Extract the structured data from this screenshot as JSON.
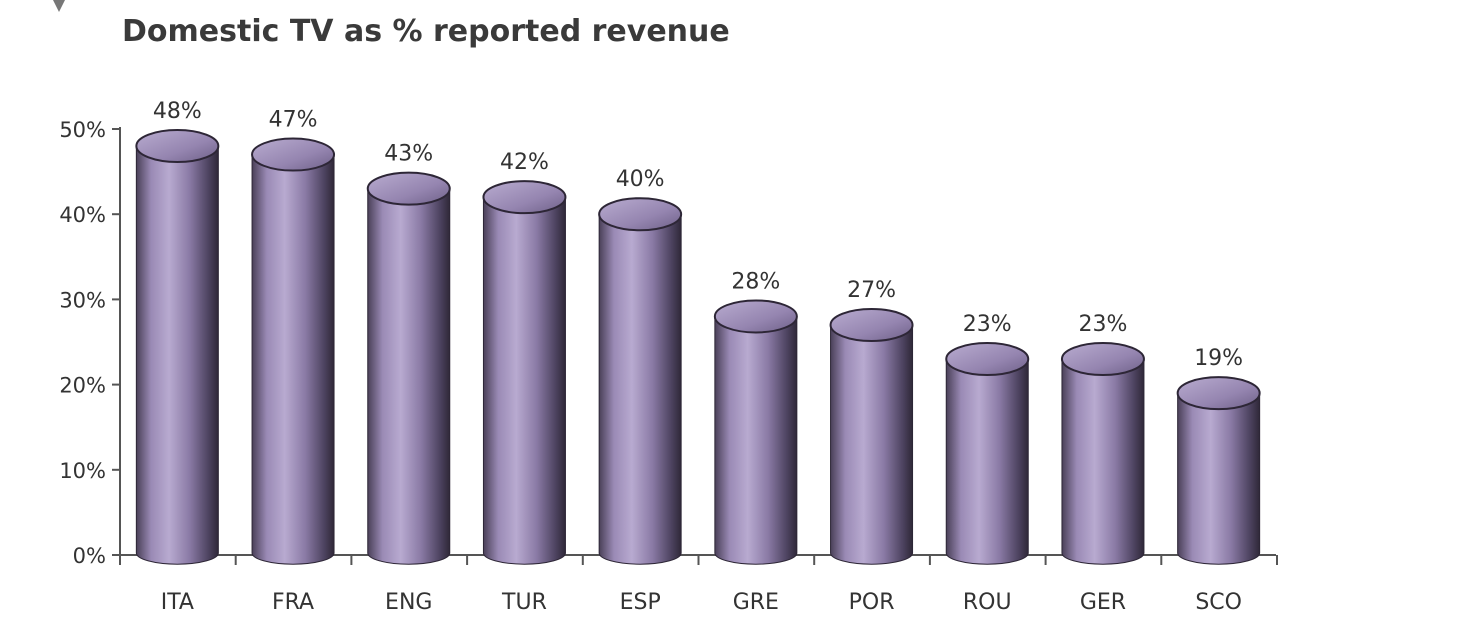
{
  "chart_data": {
    "type": "bar",
    "title": "Domestic TV as % reported revenue",
    "xlabel": "",
    "ylabel": "",
    "categories": [
      "ITA",
      "FRA",
      "ENG",
      "TUR",
      "ESP",
      "GRE",
      "POR",
      "ROU",
      "GER",
      "SCO"
    ],
    "values": [
      48,
      47,
      43,
      42,
      40,
      28,
      27,
      23,
      23,
      19
    ],
    "value_labels": [
      "48%",
      "47%",
      "43%",
      "42%",
      "40%",
      "28%",
      "27%",
      "23%",
      "23%",
      "19%"
    ],
    "ylim": [
      0,
      50
    ],
    "y_ticks": [
      0,
      10,
      20,
      30,
      40,
      50
    ],
    "y_tick_labels": [
      "0%",
      "10%",
      "20%",
      "30%",
      "40%",
      "50%"
    ],
    "grid": false,
    "legend": "none",
    "bar_style": "cylinder",
    "colors": {
      "bar_light": "#a999c2",
      "bar_mid": "#7e6f98",
      "bar_dark": "#3b3349",
      "axis": "#555555"
    }
  }
}
